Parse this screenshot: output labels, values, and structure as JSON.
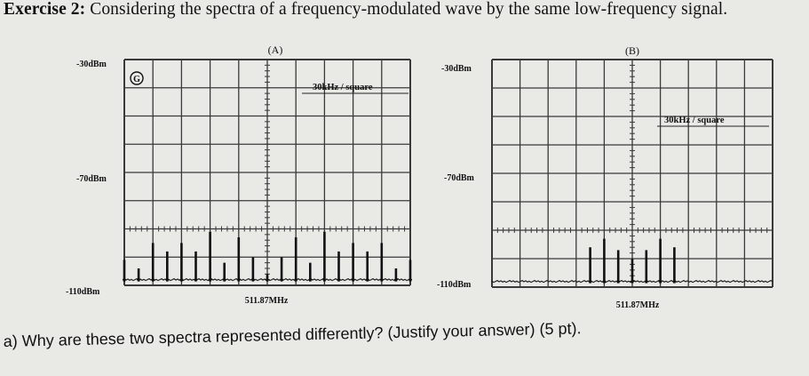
{
  "title": {
    "bold": "Exercise 2:",
    "rest": " Considering the spectra of a frequency-modulated wave by the same low-frequency signal."
  },
  "question": "a) Why are these two spectra represented differently? (Justify your answer) (5 pt).",
  "chart_data": [
    {
      "type": "line",
      "panel_label": "(A)",
      "marker": "G",
      "scale_label": "30kHz / square",
      "x_center_label": "511.87MHz",
      "y_tick_labels": [
        "-30dBm",
        "-70dBm",
        "-110dBm"
      ],
      "ylim": [
        -110,
        -30
      ],
      "xlim": [
        -150,
        150
      ],
      "grid": true,
      "divisions": {
        "x": 10,
        "y": 8
      },
      "noise_floor": -108,
      "peaks": [
        {
          "x": -150,
          "y": -101
        },
        {
          "x": -135,
          "y": -104
        },
        {
          "x": -120,
          "y": -95
        },
        {
          "x": -105,
          "y": -98
        },
        {
          "x": -90,
          "y": -95
        },
        {
          "x": -75,
          "y": -98
        },
        {
          "x": -60,
          "y": -91
        },
        {
          "x": -45,
          "y": -102
        },
        {
          "x": -30,
          "y": -93
        },
        {
          "x": -15,
          "y": -100
        },
        {
          "x": 0,
          "y": -106
        },
        {
          "x": 15,
          "y": -100
        },
        {
          "x": 30,
          "y": -93
        },
        {
          "x": 45,
          "y": -102
        },
        {
          "x": 60,
          "y": -91
        },
        {
          "x": 75,
          "y": -98
        },
        {
          "x": 90,
          "y": -95
        },
        {
          "x": 105,
          "y": -98
        },
        {
          "x": 120,
          "y": -95
        },
        {
          "x": 135,
          "y": -104
        },
        {
          "x": 150,
          "y": -101
        }
      ]
    },
    {
      "type": "line",
      "panel_label": "(B)",
      "scale_label": "30kHz / square",
      "x_center_label": "511.87MHz",
      "y_tick_labels": [
        "-30dBm",
        "-70dBm",
        "-110dBm"
      ],
      "ylim": [
        -110,
        -30
      ],
      "xlim": [
        -150,
        150
      ],
      "grid": true,
      "divisions": {
        "x": 10,
        "y": 8
      },
      "noise_floor": -108,
      "peaks": [
        {
          "x": -45,
          "y": -96
        },
        {
          "x": -30,
          "y": -93
        },
        {
          "x": -15,
          "y": -97
        },
        {
          "x": 0,
          "y": -100
        },
        {
          "x": 15,
          "y": -97
        },
        {
          "x": 30,
          "y": -93
        },
        {
          "x": 45,
          "y": -96
        }
      ]
    }
  ]
}
